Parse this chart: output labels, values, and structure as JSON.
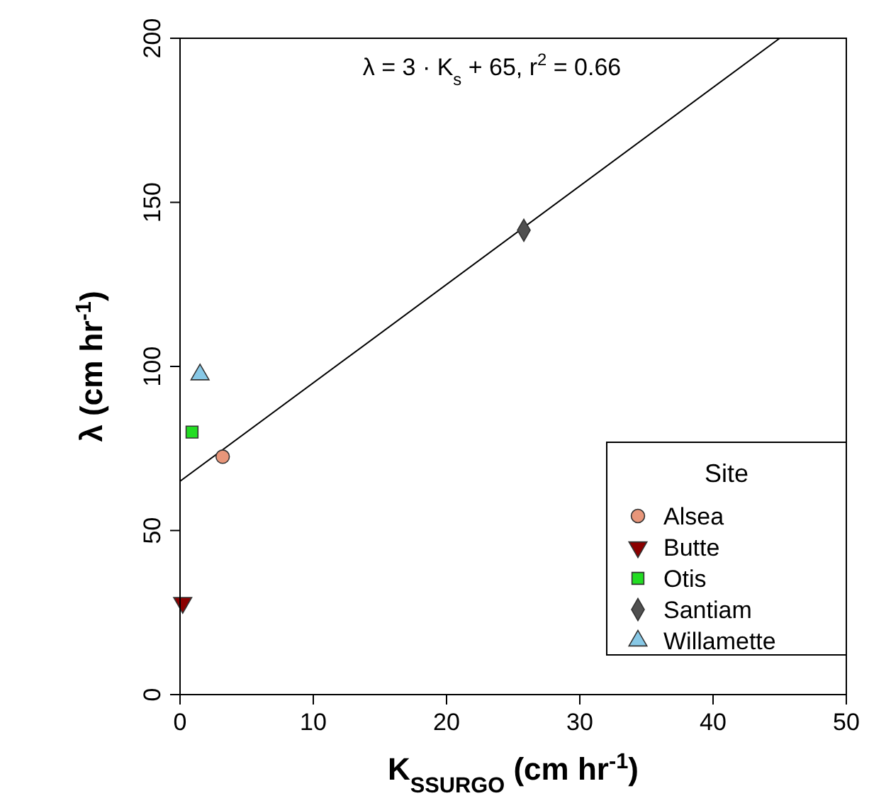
{
  "chart_data": {
    "type": "scatter",
    "xlabel": "K$_{SSURGO}$ (cm hr$^{-1}$)",
    "ylabel": "λ (cm hr$^{-1}$)",
    "xlim": [
      0,
      50
    ],
    "xticks": [
      0,
      10,
      20,
      30,
      40,
      50
    ],
    "ylim": [
      0,
      200
    ],
    "yticks": [
      0,
      50,
      100,
      150,
      200
    ],
    "grid": false,
    "legend": "bottom right",
    "legend_title": "Site",
    "annotations": [
      "λ = 3 · K$_{s}$ + 65,  r$^{2}$ = 0.66"
    ],
    "series": [
      {
        "name": "Alsea",
        "color": "#e8967a",
        "marker": "circle",
        "x": [
          3.2
        ],
        "values": [
          72.5
        ]
      },
      {
        "name": "Butte",
        "color": "#8b0000",
        "marker": "triangle-down",
        "x": [
          0.2
        ],
        "values": [
          28
        ]
      },
      {
        "name": "Otis",
        "color": "#22dd22",
        "marker": "square",
        "x": [
          0.9
        ],
        "values": [
          80
        ]
      },
      {
        "name": "Santiam",
        "color": "#505050",
        "marker": "diamond",
        "x": [
          25.8
        ],
        "values": [
          141.5
        ]
      },
      {
        "name": "Willamette",
        "color": "#87c8e6",
        "marker": "triangle",
        "x": [
          1.5
        ],
        "values": [
          97.5
        ]
      },
      {
        "type": "line",
        "color": "#000000",
        "x": [
          0,
          45
        ],
        "values": [
          65,
          200
        ]
      }
    ]
  }
}
